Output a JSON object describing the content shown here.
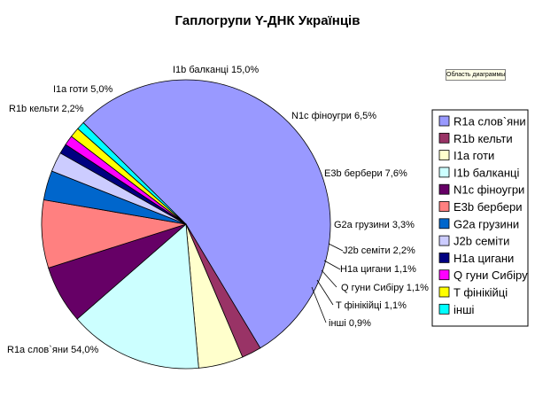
{
  "tooltip": "Область диаграммы",
  "chart_data": {
    "type": "pie",
    "title": "Гаплогрупи Y-ДНК Українців",
    "legend_position": "right",
    "slices": [
      {
        "label": "R1a слов`яни",
        "value": 54.0,
        "data_label": "R1a слов`яни 54,0%",
        "color": "#9999ff"
      },
      {
        "label": "R1b кельти",
        "value": 2.2,
        "data_label": "R1b кельти 2,2%",
        "color": "#993366"
      },
      {
        "label": "I1a готи",
        "value": 5.0,
        "data_label": "I1a готи 5,0%",
        "color": "#ffffcc"
      },
      {
        "label": "I1b балканці",
        "value": 15.0,
        "data_label": "I1b балканці 15,0%",
        "color": "#ccffff"
      },
      {
        "label": "N1c фіноугри",
        "value": 6.5,
        "data_label": "N1c фіноугри 6,5%",
        "color": "#660066"
      },
      {
        "label": "E3b бербери",
        "value": 7.6,
        "data_label": "E3b бербери 7,6%",
        "color": "#ff8080"
      },
      {
        "label": "G2a грузини",
        "value": 3.3,
        "data_label": "G2a грузини 3,3%",
        "color": "#0066cc"
      },
      {
        "label": "J2b семіти",
        "value": 2.2,
        "data_label": "J2b семіти 2,2%",
        "color": "#ccccff"
      },
      {
        "label": "H1a цигани",
        "value": 1.1,
        "data_label": "H1a цигани 1,1%",
        "color": "#000080"
      },
      {
        "label": "Q гуни Сибіру",
        "value": 1.1,
        "data_label": "Q гуни Сибіру 1,1%",
        "color": "#ff00ff"
      },
      {
        "label": "T фінікійці",
        "value": 1.1,
        "data_label": "T фінікійці 1,1%",
        "color": "#ffff00"
      },
      {
        "label": "інші",
        "value": 0.9,
        "data_label": "інші 0,9%",
        "color": "#00ffff"
      }
    ]
  }
}
